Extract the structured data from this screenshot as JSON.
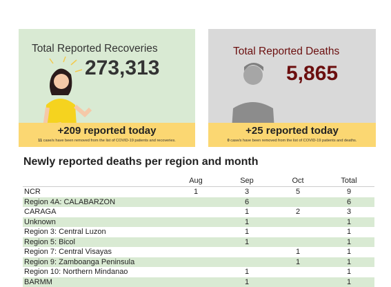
{
  "cards": [
    {
      "title": "Total Reported Recoveries",
      "value": "273,313",
      "today": "+209 reported today",
      "note_count": "11",
      "note_text": "case/s have been removed from the list of COVID-19 patients and recoveries."
    },
    {
      "title": "Total Reported Deaths",
      "value": "5,865",
      "today": "+25 reported today",
      "note_count": "0",
      "note_text": "case/s have been removed from the list of COVID-19 patients and deaths."
    }
  ],
  "table": {
    "title": "Newly reported deaths per region and month",
    "columns": [
      "Aug",
      "Sep",
      "Oct",
      "Total"
    ],
    "rows": [
      [
        "NCR",
        1,
        3,
        5,
        9
      ],
      [
        "Region 4A: CALABARZON",
        null,
        6,
        null,
        6
      ],
      [
        "CARAGA",
        null,
        1,
        2,
        3
      ],
      [
        "Unknown",
        null,
        1,
        null,
        1
      ],
      [
        "Region 3: Central Luzon",
        null,
        1,
        null,
        1
      ],
      [
        "Region 5: Bicol",
        null,
        1,
        null,
        1
      ],
      [
        "Region 7: Central Visayas",
        null,
        null,
        1,
        1
      ],
      [
        "Region 9: Zamboanga Peninsula",
        null,
        null,
        1,
        1
      ],
      [
        "Region 10: Northern Mindanao",
        null,
        1,
        null,
        1
      ],
      [
        "BARMM",
        null,
        1,
        null,
        1
      ]
    ]
  }
}
